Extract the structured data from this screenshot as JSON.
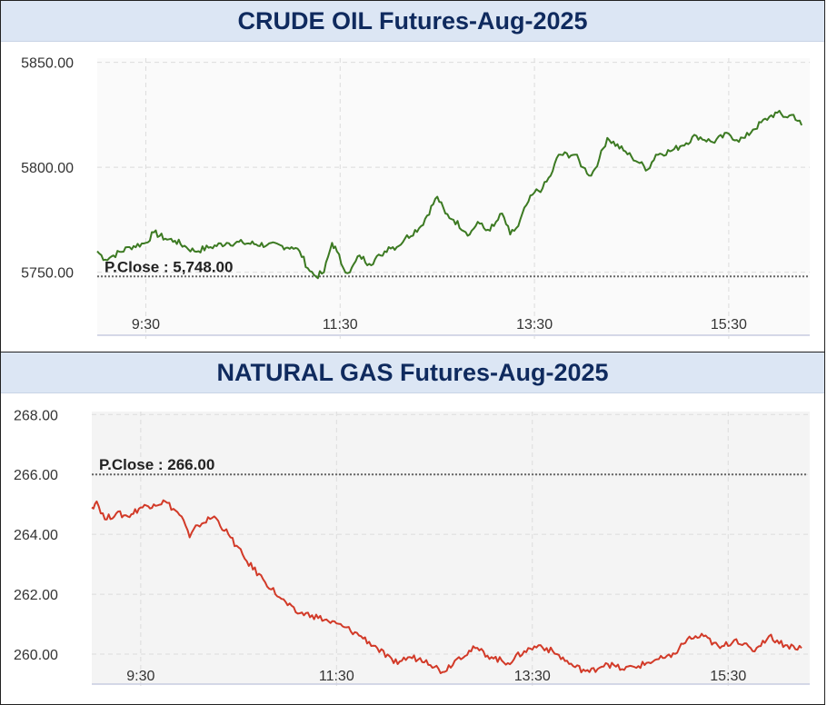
{
  "chart_data": [
    {
      "type": "line",
      "title": "CRUDE OIL Futures-Aug-2025",
      "xlabel": "",
      "ylabel": "",
      "x_ticks": [
        "9:30",
        "11:30",
        "13:30",
        "15:30"
      ],
      "y_ticks": [
        "5850.00",
        "5800.00",
        "5750.00"
      ],
      "ylim": [
        5720,
        5852
      ],
      "xlim": [
        "09:00",
        "16:20"
      ],
      "grid": true,
      "prev_close_label": "P.Close : 5,748.00",
      "prev_close": 5748,
      "series": [
        {
          "color": "#3c7a22",
          "x": [
            "09:00",
            "09:05",
            "09:10",
            "09:20",
            "09:30",
            "09:35",
            "09:42",
            "09:48",
            "09:55",
            "10:00",
            "10:10",
            "10:20",
            "10:30",
            "10:45",
            "11:00",
            "11:05",
            "11:10",
            "11:15",
            "11:20",
            "11:25",
            "11:28",
            "11:32",
            "11:36",
            "11:42",
            "11:48",
            "11:55",
            "12:00",
            "12:05",
            "12:10",
            "12:20",
            "12:30",
            "12:35",
            "12:40",
            "12:50",
            "12:55",
            "13:00",
            "13:05",
            "13:10",
            "13:15",
            "13:20",
            "13:25",
            "13:30",
            "13:35",
            "13:40",
            "13:45",
            "13:55",
            "14:00",
            "14:05",
            "14:10",
            "14:15",
            "14:25",
            "14:30",
            "14:35",
            "14:40",
            "14:45",
            "14:55",
            "15:00",
            "15:10",
            "15:20",
            "15:30",
            "15:35",
            "15:40",
            "15:45",
            "15:55",
            "16:00",
            "16:05",
            "16:10",
            "16:15"
          ],
          "y": [
            5760,
            5756,
            5758,
            5762,
            5764,
            5769,
            5766,
            5765,
            5762,
            5760,
            5762,
            5764,
            5764,
            5763,
            5762,
            5760,
            5752,
            5748,
            5750,
            5764,
            5760,
            5752,
            5750,
            5758,
            5754,
            5758,
            5762,
            5762,
            5766,
            5772,
            5786,
            5778,
            5775,
            5768,
            5774,
            5770,
            5772,
            5778,
            5768,
            5772,
            5782,
            5788,
            5790,
            5796,
            5806,
            5806,
            5800,
            5796,
            5804,
            5814,
            5808,
            5805,
            5802,
            5799,
            5806,
            5808,
            5810,
            5815,
            5812,
            5816,
            5813,
            5814,
            5818,
            5824,
            5826,
            5824,
            5825,
            5820
          ]
        }
      ]
    },
    {
      "type": "line",
      "title": "NATURAL GAS Futures-Aug-2025",
      "xlabel": "",
      "ylabel": "",
      "x_ticks": [
        "9:30",
        "11:30",
        "13:30",
        "15:30"
      ],
      "y_ticks": [
        "268.00",
        "266.00",
        "264.00",
        "262.00",
        "260.00"
      ],
      "ylim": [
        259.0,
        268.1
      ],
      "xlim": [
        "09:00",
        "16:20"
      ],
      "grid": true,
      "prev_close_label": "P.Close : 266.00",
      "prev_close": 266,
      "series": [
        {
          "color": "#d23a28",
          "x": [
            "09:00",
            "09:03",
            "09:08",
            "09:15",
            "09:22",
            "09:30",
            "09:38",
            "09:45",
            "09:55",
            "10:00",
            "10:05",
            "10:15",
            "10:25",
            "10:35",
            "10:45",
            "10:55",
            "11:05",
            "11:15",
            "11:25",
            "11:35",
            "11:45",
            "11:55",
            "12:05",
            "12:15",
            "12:25",
            "12:35",
            "12:45",
            "12:55",
            "13:05",
            "13:15",
            "13:25",
            "13:35",
            "13:45",
            "13:55",
            "14:05",
            "14:15",
            "14:25",
            "14:35",
            "14:45",
            "14:55",
            "15:05",
            "15:15",
            "15:25",
            "15:35",
            "15:45",
            "15:55",
            "16:05",
            "16:15"
          ],
          "y": [
            264.9,
            265.1,
            264.5,
            264.7,
            264.6,
            264.9,
            265.0,
            265.1,
            264.6,
            263.9,
            264.3,
            264.6,
            263.9,
            263.1,
            262.5,
            261.9,
            261.4,
            261.3,
            261.1,
            260.9,
            260.6,
            260.2,
            259.7,
            259.9,
            259.8,
            259.4,
            259.9,
            260.2,
            259.9,
            259.7,
            260.1,
            260.3,
            260.0,
            259.6,
            259.4,
            259.7,
            259.5,
            259.6,
            259.8,
            259.9,
            260.5,
            260.6,
            260.2,
            260.5,
            260.1,
            260.6,
            260.3,
            260.2
          ]
        }
      ]
    }
  ]
}
